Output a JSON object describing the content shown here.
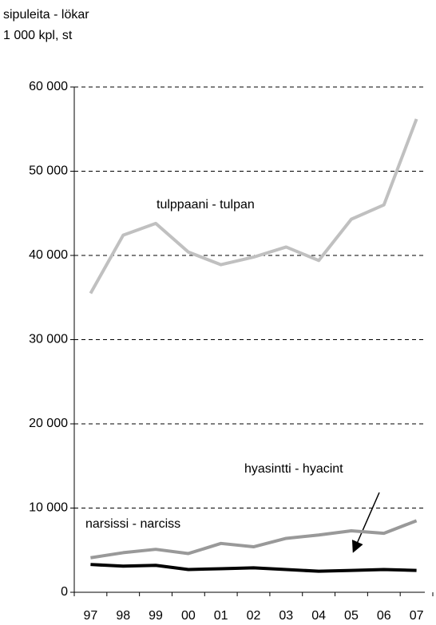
{
  "chart_data": {
    "type": "line",
    "title": "sipuleita - lökar",
    "subtitle": "1 000 kpl, st",
    "categories": [
      "97",
      "98",
      "99",
      "00",
      "01",
      "02",
      "03",
      "04",
      "05",
      "06",
      "07"
    ],
    "series": [
      {
        "name": "tulppaani - tulpan",
        "color": "#c0c0c0",
        "values": [
          35500,
          42400,
          43800,
          40400,
          38900,
          39800,
          41000,
          39400,
          44300,
          46000,
          56200
        ]
      },
      {
        "name": "narsissi - narciss",
        "color": "#999999",
        "values": [
          4100,
          4700,
          5100,
          4600,
          5800,
          5400,
          6400,
          6800,
          7300,
          7000,
          8500
        ]
      },
      {
        "name": "hyasintti - hyacint",
        "color": "#000000",
        "values": [
          3300,
          3100,
          3200,
          2700,
          2800,
          2900,
          2700,
          2500,
          2600,
          2700,
          2600
        ]
      }
    ],
    "ylim": [
      0,
      60000
    ],
    "yticks": [
      0,
      {
        "value": 10000,
        "label": "10 000"
      },
      {
        "value": 20000,
        "label": "20 000"
      },
      {
        "value": 30000,
        "label": "30 000"
      },
      {
        "value": 40000,
        "label": "40 000"
      },
      {
        "value": 50000,
        "label": "50 000"
      },
      {
        "value": 60000,
        "label": "60 000"
      }
    ],
    "grid": true
  }
}
